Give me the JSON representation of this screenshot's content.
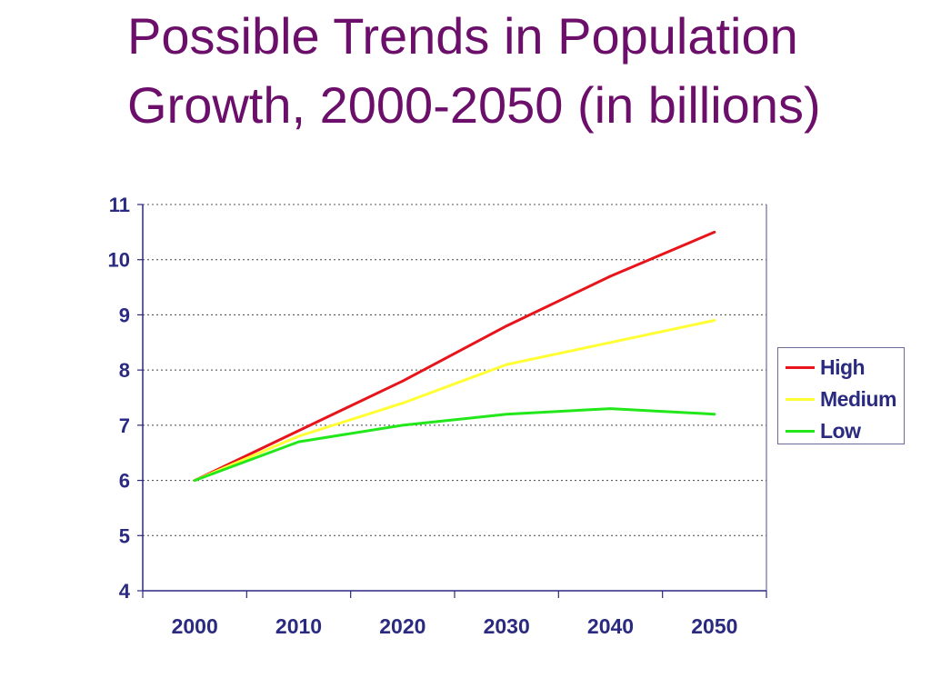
{
  "title": {
    "line1": "Possible Trends in Population",
    "line2": "Growth, 2000-2050 (in billions)"
  },
  "chart_data": {
    "type": "line",
    "title": "Possible Trends in Population Growth, 2000-2050 (in billions)",
    "xlabel": "",
    "ylabel": "",
    "categories": [
      "2000",
      "2010",
      "2020",
      "2030",
      "2040",
      "2050"
    ],
    "ylim": [
      4,
      11
    ],
    "yticks": [
      "4",
      "5",
      "6",
      "7",
      "8",
      "9",
      "10",
      "11"
    ],
    "grid": "horizontal dotted",
    "legend_position": "right",
    "series": [
      {
        "name": "High",
        "color": "#e8141b",
        "values": [
          6.0,
          6.9,
          7.8,
          8.8,
          9.7,
          10.5
        ]
      },
      {
        "name": "Medium",
        "color": "#ffff33",
        "values": [
          6.0,
          6.8,
          7.4,
          8.1,
          8.5,
          8.9
        ]
      },
      {
        "name": "Low",
        "color": "#22e81b",
        "values": [
          6.0,
          6.7,
          7.0,
          7.2,
          7.3,
          7.2
        ]
      }
    ]
  }
}
